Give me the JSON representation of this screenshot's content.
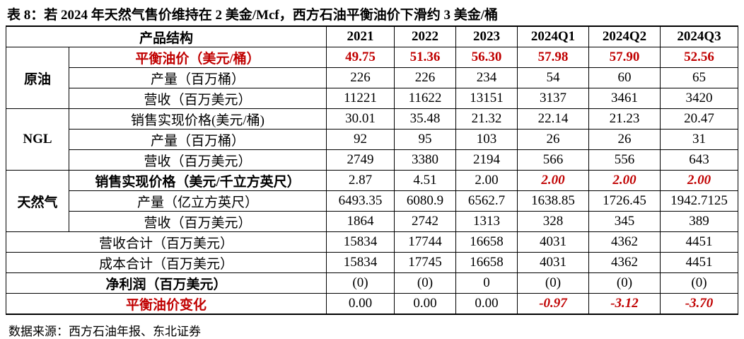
{
  "title": "表 8：若 2024 年天然气售价维持在 2 美金/Mcf，西方石油平衡油价下滑约 3 美金/桶",
  "table": {
    "header": [
      "产品结构",
      "2021",
      "2022",
      "2023",
      "2024Q1",
      "2024Q2",
      "2024Q3"
    ],
    "groups": [
      {
        "label": "原油",
        "rows": [
          {
            "label": "平衡油价（美元/桶）",
            "cells": [
              "49.75",
              "51.36",
              "56.30",
              "57.98",
              "57.90",
              "52.56"
            ]
          },
          {
            "label": "产量（百万桶）",
            "cells": [
              "226",
              "226",
              "234",
              "54",
              "60",
              "65"
            ]
          },
          {
            "label": "营收（百万美元）",
            "cells": [
              "11221",
              "11622",
              "13151",
              "3137",
              "3461",
              "3420"
            ]
          }
        ]
      },
      {
        "label": "NGL",
        "rows": [
          {
            "label": "销售实现价格(美元/桶)",
            "cells": [
              "30.01",
              "35.48",
              "21.32",
              "22.14",
              "21.23",
              "20.47"
            ]
          },
          {
            "label": "产量（百万桶）",
            "cells": [
              "92",
              "95",
              "103",
              "26",
              "26",
              "31"
            ]
          },
          {
            "label": "营收（百万美元）",
            "cells": [
              "2749",
              "3380",
              "2194",
              "566",
              "556",
              "643"
            ]
          }
        ]
      },
      {
        "label": "天然气",
        "rows": [
          {
            "label": "销售实现价格（美元/千立方英尺）",
            "cells": [
              "2.87",
              "4.51",
              "2.00",
              "2.00",
              "2.00",
              "2.00"
            ]
          },
          {
            "label": "产量（亿立方英尺）",
            "cells": [
              "6493.35",
              "6080.9",
              "6562.7",
              "1638.85",
              "1726.45",
              "1942.7125"
            ]
          },
          {
            "label": "营收（百万美元）",
            "cells": [
              "1864",
              "2742",
              "1313",
              "328",
              "345",
              "389"
            ]
          }
        ]
      }
    ],
    "totals": [
      {
        "label": "营收合计（百万美元）",
        "cells": [
          "15834",
          "17744",
          "16658",
          "4031",
          "4362",
          "4451"
        ]
      },
      {
        "label": "成本合计（百万美元）",
        "cells": [
          "15834",
          "17745",
          "16658",
          "4031",
          "4362",
          "4451"
        ]
      },
      {
        "label": "净利润（百万美元）",
        "cells": [
          "(0)",
          "(0)",
          "0",
          "(0)",
          "(0)",
          "(0)"
        ]
      },
      {
        "label": "平衡油价变化",
        "cells": [
          "0.00",
          "0.00",
          "0.00",
          "-0.97",
          "-3.12",
          "-3.70"
        ]
      }
    ]
  },
  "source": "数据来源：西方石油年报、东北证券"
}
